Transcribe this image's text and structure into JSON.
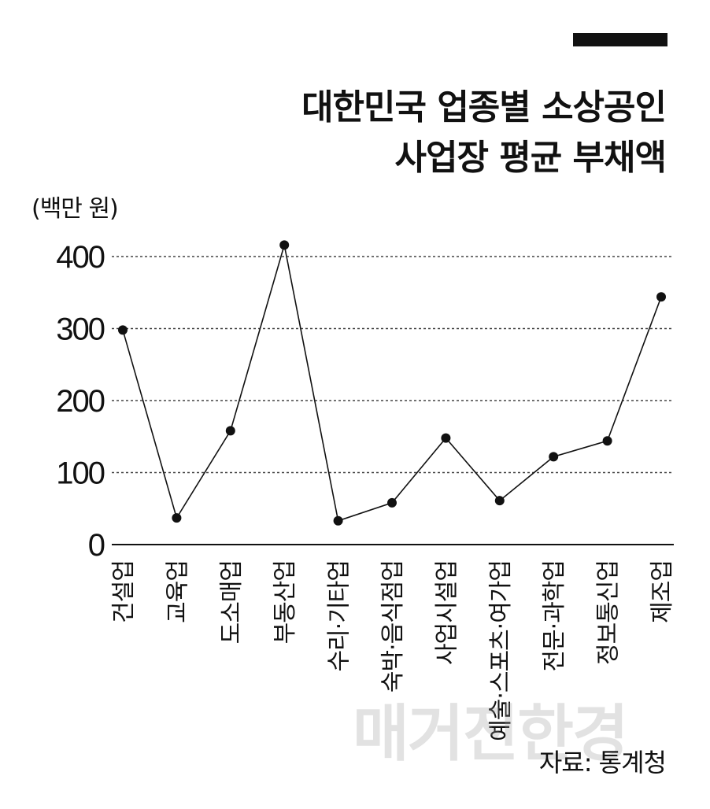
{
  "chart_data": {
    "type": "line",
    "title_lines": [
      "대한민국 업종별 소상공인",
      "사업장 평균 부채액"
    ],
    "unit_label": "(백만 원)",
    "categories": [
      "건설업",
      "교육업",
      "도소매업",
      "부동산업",
      "수리·기타업",
      "숙박·음식점업",
      "사업시설업",
      "예술·스포츠·여가업",
      "전문·과학업",
      "정보통신업",
      "제조업"
    ],
    "values": [
      298,
      37,
      158,
      416,
      33,
      58,
      148,
      61,
      122,
      144,
      344
    ],
    "yticks": [
      "0",
      "100",
      "200",
      "300",
      "400"
    ],
    "ytick_values": [
      0,
      100,
      200,
      300,
      400
    ],
    "ylim": [
      0,
      400
    ],
    "grid": true,
    "line_color": "#111111",
    "grid_color": "#444444"
  },
  "source": "자료: 통계청",
  "watermark": "매거진한경"
}
